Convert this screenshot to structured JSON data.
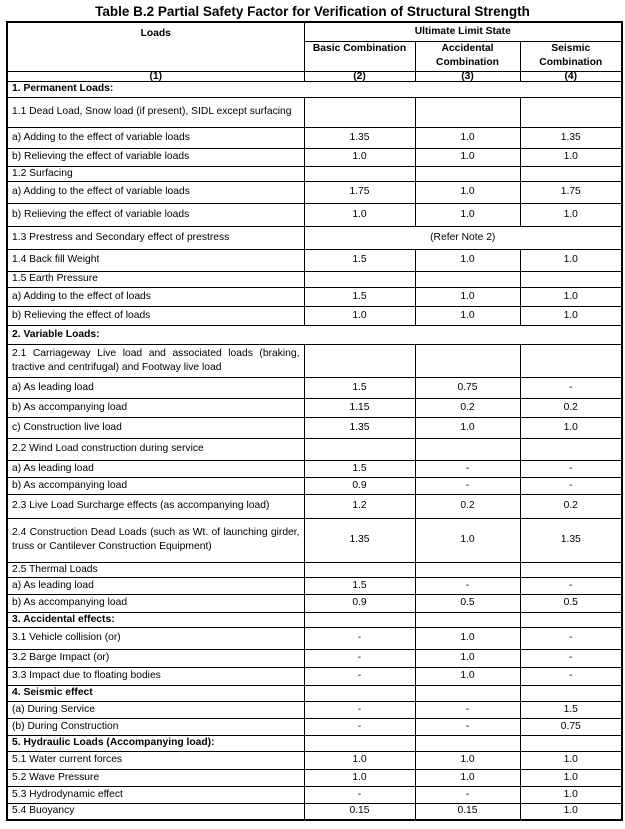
{
  "title": "Table B.2 Partial Safety Factor for Verification of Structural Strength",
  "header": {
    "loads": "Loads",
    "uls": "Ultimate Limit State",
    "basic": "Basic Combination",
    "accidental": "Accidental Combination",
    "seismic": "Seismic Combination",
    "col_numbers": [
      "(1)",
      "(2)",
      "(3)",
      "(4)"
    ]
  },
  "rows": [
    {
      "label": "1. Permanent Loads:",
      "section": true,
      "full": true
    },
    {
      "label": "1.1 Dead Load, Snow load (if present), SIDL except surfacing",
      "values": [
        "",
        "",
        ""
      ]
    },
    {
      "label": "a) Adding to the effect of variable loads",
      "values": [
        "1.35",
        "1.0",
        "1.35"
      ]
    },
    {
      "label": "b) Relieving the effect of variable loads",
      "values": [
        "1.0",
        "1.0",
        "1.0"
      ]
    },
    {
      "label": "1.2 Surfacing",
      "values": [
        "",
        "",
        ""
      ]
    },
    {
      "label": "a) Adding to the effect of variable loads",
      "values": [
        "1.75",
        "1.0",
        "1.75"
      ]
    },
    {
      "label": "b) Relieving the effect of variable loads",
      "values": [
        "1.0",
        "1.0",
        "1.0"
      ]
    },
    {
      "label": "1.3 Prestress and Secondary effect of prestress",
      "merged": "(Refer Note 2)"
    },
    {
      "label": "1.4 Back fill Weight",
      "values": [
        "1.5",
        "1.0",
        "1.0"
      ]
    },
    {
      "label": "1.5 Earth Pressure",
      "values": [
        "",
        "",
        ""
      ]
    },
    {
      "label": "a) Adding to the effect of loads",
      "values": [
        "1.5",
        "1.0",
        "1.0"
      ]
    },
    {
      "label": "b) Relieving the effect of loads",
      "values": [
        "1.0",
        "1.0",
        "1.0"
      ]
    },
    {
      "label": "2. Variable Loads:",
      "section": true,
      "full": true
    },
    {
      "label": "2.1 Carriageway Live load and associated loads (braking, tractive and centrifugal) and Footway live load",
      "values": [
        "",
        "",
        ""
      ]
    },
    {
      "label": "a) As leading load",
      "values": [
        "1.5",
        "0.75",
        "-"
      ]
    },
    {
      "label": "b) As accompanying load",
      "values": [
        "1.15",
        "0.2",
        "0.2"
      ]
    },
    {
      "label": "c) Construction live load",
      "values": [
        "1.35",
        "1.0",
        "1.0"
      ]
    },
    {
      "label": "2.2 Wind Load construction during service",
      "values": [
        "",
        "",
        ""
      ]
    },
    {
      "label": "a) As leading load",
      "values": [
        "1.5",
        "-",
        "-"
      ]
    },
    {
      "label": "b) As accompanying load",
      "values": [
        "0.9",
        "-",
        "-"
      ]
    },
    {
      "label": "2.3 Live Load Surcharge effects (as accompanying load)",
      "values": [
        "1.2",
        "0.2",
        "0.2"
      ]
    },
    {
      "label": "2.4 Construction Dead Loads (such as Wt. of launching girder, truss or Cantilever Construction Equipment)",
      "values": [
        "1.35",
        "1.0",
        "1.35"
      ]
    },
    {
      "label": "2.5 Thermal Loads",
      "values": [
        "",
        "",
        ""
      ]
    },
    {
      "label": "a) As leading load",
      "values": [
        "1.5",
        "-",
        "-"
      ]
    },
    {
      "label": "b) As accompanying load",
      "values": [
        "0.9",
        "0.5",
        "0.5"
      ]
    },
    {
      "label": "3. Accidental effects:",
      "section": true,
      "values": [
        "",
        "",
        ""
      ]
    },
    {
      "label": "3.1 Vehicle collision (or)",
      "values": [
        "-",
        "1.0",
        "-"
      ]
    },
    {
      "label": "3.2 Barge Impact (or)",
      "values": [
        "-",
        "1.0",
        "-"
      ]
    },
    {
      "label": "3.3 Impact due to floating bodies",
      "values": [
        "-",
        "1.0",
        "-"
      ]
    },
    {
      "label": "4. Seismic effect",
      "section": true,
      "values": [
        "",
        "",
        ""
      ]
    },
    {
      "label": "(a) During Service",
      "values": [
        "-",
        "-",
        "1.5"
      ]
    },
    {
      "label": "(b) During Construction",
      "values": [
        "-",
        "-",
        "0.75"
      ]
    },
    {
      "label": "5. Hydraulic Loads (Accompanying load):",
      "section": true,
      "values": [
        "",
        "",
        ""
      ]
    },
    {
      "label": "5.1 Water current forces",
      "values": [
        "1.0",
        "1.0",
        "1.0"
      ]
    },
    {
      "label": "5.2 Wave Pressure",
      "values": [
        "1.0",
        "1.0",
        "1.0"
      ]
    },
    {
      "label": "5.3 Hydrodynamic effect",
      "values": [
        "-",
        "-",
        "1.0"
      ]
    },
    {
      "label": "5.4 Buoyancy",
      "values": [
        "0.15",
        "0.15",
        "1.0"
      ]
    }
  ]
}
